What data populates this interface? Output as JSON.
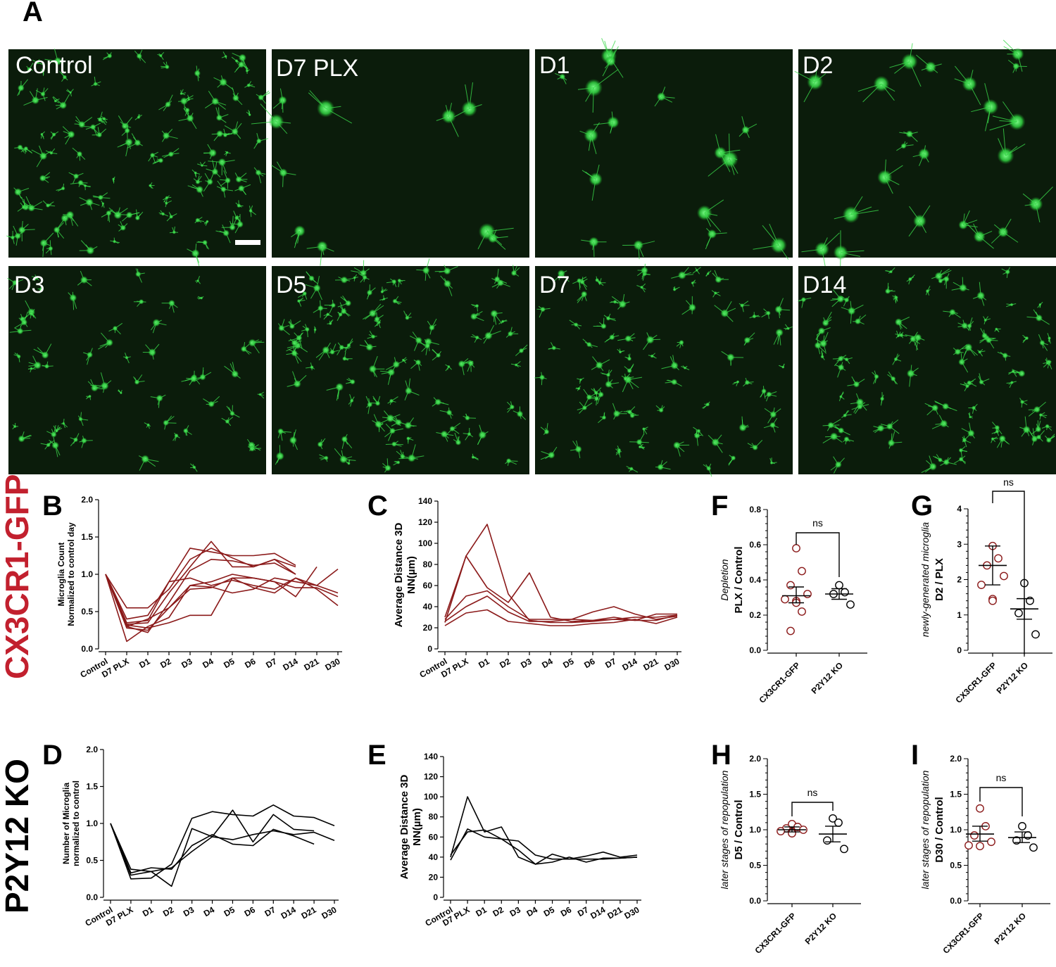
{
  "figure": {
    "panel_letters": [
      "A",
      "B",
      "C",
      "D",
      "E",
      "F",
      "G",
      "H",
      "I"
    ],
    "row_labels": [
      {
        "text": "CX3CR1-GFP",
        "color": "#c2202e"
      },
      {
        "text": "P2Y12 KO",
        "color": "#000000"
      }
    ],
    "image_panels": [
      "Control",
      "D7 PLX",
      "D1",
      "D2",
      "D3",
      "D5",
      "D7",
      "D14"
    ],
    "colors": {
      "cx3cr1": "#8b1a1a",
      "p2y12": "#000000",
      "microglia": "#3ad84a",
      "tissue": "#0b1c0b"
    }
  },
  "chart_data": [
    {
      "id": "B",
      "type": "line",
      "color": "#8b1a1a",
      "categories": [
        "Control",
        "D7 PLX",
        "D1",
        "D2",
        "D3",
        "D4",
        "D5",
        "D6",
        "D7",
        "D14",
        "D21",
        "D30"
      ],
      "ylabel": [
        "Microglia Count",
        "Normalized to control day"
      ],
      "ylim": [
        0,
        2.0
      ],
      "yticks": [
        "0.0",
        "0.5",
        "1.0",
        "1.5",
        "2.0"
      ],
      "series": [
        {
          "values": [
            1.0,
            0.55,
            0.55,
            0.8,
            1.2,
            1.35,
            1.22,
            1.1,
            1.2,
            1.0,
            null,
            null
          ]
        },
        {
          "values": [
            1.0,
            0.4,
            0.45,
            0.9,
            1.35,
            1.3,
            1.25,
            1.25,
            1.28,
            1.12,
            null,
            null
          ]
        },
        {
          "values": [
            1.0,
            0.33,
            0.35,
            0.75,
            1.1,
            1.44,
            1.1,
            1.1,
            1.2,
            1.1,
            null,
            null
          ]
        },
        {
          "values": [
            1.0,
            0.3,
            0.22,
            0.62,
            1.05,
            1.2,
            1.18,
            1.12,
            1.15,
            1.0,
            null,
            null
          ]
        },
        {
          "values": [
            1.0,
            0.35,
            0.38,
            0.9,
            0.95,
            0.85,
            0.92,
            0.85,
            0.8,
            0.95,
            0.8,
            0.58
          ]
        },
        {
          "values": [
            1.0,
            0.1,
            0.3,
            0.42,
            0.85,
            0.9,
            1.0,
            0.95,
            0.9,
            0.82,
            0.82,
            0.7
          ]
        },
        {
          "values": [
            1.0,
            0.28,
            0.25,
            0.55,
            0.8,
            0.82,
            0.95,
            0.82,
            0.75,
            0.95,
            0.85,
            1.07
          ]
        },
        {
          "values": [
            1.0,
            0.32,
            0.28,
            0.35,
            0.45,
            0.45,
            0.95,
            0.95,
            0.9,
            0.7,
            1.1,
            null
          ]
        },
        {
          "values": [
            1.0,
            0.3,
            0.4,
            0.55,
            0.85,
            0.83,
            0.75,
            0.8,
            0.95,
            0.9,
            0.85,
            0.75
          ]
        }
      ]
    },
    {
      "id": "C",
      "type": "line",
      "color": "#8b1a1a",
      "categories": [
        "Control",
        "D7 PLX",
        "D1",
        "D2",
        "D3",
        "D4",
        "D5",
        "D6",
        "D7",
        "D14",
        "D21",
        "D30"
      ],
      "ylabel": [
        "Average Distance 3D",
        "NN(µm)"
      ],
      "ylim": [
        0,
        140
      ],
      "yticks": [
        "0",
        "20",
        "40",
        "60",
        "80",
        "100",
        "120",
        "140"
      ],
      "series": [
        {
          "values": [
            30,
            88,
            118,
            52,
            27,
            25,
            25,
            26,
            28,
            27,
            27,
            32
          ]
        },
        {
          "values": [
            25,
            88,
            58,
            44,
            72,
            30,
            26,
            27,
            28,
            30,
            30,
            32
          ]
        },
        {
          "values": [
            28,
            50,
            55,
            40,
            28,
            28,
            28,
            27,
            30,
            27,
            33,
            33
          ]
        },
        {
          "values": [
            22,
            34,
            37,
            26,
            24,
            22,
            22,
            24,
            25,
            28,
            24,
            30
          ]
        },
        {
          "values": [
            26,
            40,
            50,
            35,
            26,
            26,
            28,
            35,
            40,
            33,
            28,
            31
          ]
        }
      ]
    },
    {
      "id": "D",
      "type": "line",
      "color": "#000000",
      "categories": [
        "Control",
        "D7 PLX",
        "D1",
        "D2",
        "D3",
        "D4",
        "D5",
        "D6",
        "D7",
        "D14",
        "D21",
        "D30"
      ],
      "ylabel": [
        "Number of Microglia",
        "normalized to control"
      ],
      "ylim": [
        0,
        2.0
      ],
      "yticks": [
        "0.0",
        "0.5",
        "1.0",
        "1.5",
        "2.0"
      ],
      "series": [
        {
          "values": [
            1.0,
            0.25,
            0.26,
            0.45,
            1.07,
            1.16,
            1.12,
            1.1,
            1.25,
            1.1,
            1.08,
            0.97
          ]
        },
        {
          "values": [
            1.0,
            0.33,
            0.4,
            0.38,
            0.7,
            0.85,
            0.72,
            0.7,
            0.92,
            0.83,
            0.72,
            null
          ]
        },
        {
          "values": [
            1.0,
            0.38,
            0.35,
            0.15,
            0.93,
            0.82,
            1.18,
            0.75,
            1.12,
            0.92,
            0.9,
            null
          ]
        },
        {
          "values": [
            1.0,
            0.3,
            0.35,
            0.4,
            0.62,
            0.82,
            0.78,
            0.85,
            0.9,
            0.85,
            0.88,
            0.77
          ]
        }
      ]
    },
    {
      "id": "E",
      "type": "line",
      "color": "#000000",
      "categories": [
        "Control",
        "D7 PLX",
        "D1",
        "D2",
        "D3",
        "D4",
        "D5",
        "D6",
        "D7",
        "D14",
        "D21",
        "D30"
      ],
      "ylabel": [
        "Average Distance 3D",
        "NN(µm)"
      ],
      "ylim": [
        0,
        140
      ],
      "yticks": [
        "0",
        "20",
        "40",
        "60",
        "80",
        "100",
        "120",
        "140"
      ],
      "series": [
        {
          "values": [
            40,
            100,
            65,
            70,
            40,
            33,
            43,
            38,
            41,
            45,
            40,
            42
          ]
        },
        {
          "values": [
            37,
            68,
            60,
            58,
            47,
            33,
            35,
            40,
            35,
            39,
            39,
            40
          ]
        },
        {
          "values": [
            42,
            65,
            67,
            58,
            56,
            42,
            38,
            38,
            38,
            38,
            39,
            40
          ]
        }
      ]
    },
    {
      "id": "F",
      "type": "scatter",
      "categories": [
        "CX3CR1-GFP",
        "P2Y12 KO"
      ],
      "ylabel": "PLX / Control",
      "ylabel_context": "Depletion",
      "ylim": [
        0,
        0.8
      ],
      "yticks": [
        "0.0",
        "0.2",
        "0.4",
        "0.6",
        "0.8"
      ],
      "significance": "ns",
      "groups": [
        {
          "values": [
            0.58,
            0.45,
            0.37,
            0.32,
            0.29,
            0.28,
            0.27,
            0.22,
            0.11
          ],
          "mean": 0.31,
          "sem_low": 0.27,
          "sem_high": 0.36,
          "color": "#8b1a1a"
        },
        {
          "values": [
            0.37,
            0.33,
            0.32,
            0.26
          ],
          "mean": 0.32,
          "sem_low": 0.29,
          "sem_high": 0.35,
          "color": "#000000"
        }
      ]
    },
    {
      "id": "G",
      "type": "scatter",
      "categories": [
        "CX3CR1-GFP",
        "P2Y12 KO"
      ],
      "ylabel": "D2 / PLX",
      "ylabel_context": "newly-generated microglia",
      "ylim": [
        0,
        4
      ],
      "yticks": [
        "0",
        "1",
        "2",
        "3",
        "4"
      ],
      "significance": "ns",
      "groups": [
        {
          "values": [
            2.95,
            2.6,
            2.4,
            2.1,
            1.85,
            1.45,
            1.4
          ],
          "mean": 2.4,
          "sem_low": 1.85,
          "sem_high": 2.95,
          "color": "#8b1a1a"
        },
        {
          "values": [
            1.9,
            1.4,
            1.05,
            0.45
          ],
          "mean": 1.17,
          "sem_low": 0.88,
          "sem_high": 1.46,
          "color": "#000000"
        }
      ]
    },
    {
      "id": "H",
      "type": "scatter",
      "categories": [
        "CX3CR1-GFP",
        "P2Y12 KO"
      ],
      "ylabel": "D5 / Control",
      "ylabel_context": "later stages of repopulation",
      "ylim": [
        0,
        2.0
      ],
      "yticks": [
        "0.0",
        "0.5",
        "1.0",
        "1.5",
        "2.0"
      ],
      "significance": "ns",
      "groups": [
        {
          "values": [
            1.08,
            1.04,
            1.02,
            1.0,
            0.98,
            0.97,
            0.95
          ],
          "mean": 1.0,
          "sem_low": 0.97,
          "sem_high": 1.04,
          "color": "#8b1a1a"
        },
        {
          "values": [
            1.16,
            1.1,
            0.85,
            0.73
          ],
          "mean": 0.94,
          "sem_low": 0.83,
          "sem_high": 1.05,
          "color": "#000000"
        }
      ]
    },
    {
      "id": "I",
      "type": "scatter",
      "categories": [
        "CX3CR1-GFP",
        "P2Y12 KO"
      ],
      "ylabel": "D30 / Control",
      "ylabel_context": "later stages of repopulation",
      "ylim": [
        0,
        2.0
      ],
      "yticks": [
        "0.0",
        "0.5",
        "1.0",
        "1.5",
        "2.0"
      ],
      "significance": "ns",
      "groups": [
        {
          "values": [
            1.3,
            1.05,
            0.92,
            0.83,
            0.78,
            0.77
          ],
          "mean": 0.94,
          "sem_low": 0.84,
          "sem_high": 1.05,
          "color": "#8b1a1a"
        },
        {
          "values": [
            1.05,
            0.92,
            0.85,
            0.75
          ],
          "mean": 0.89,
          "sem_low": 0.82,
          "sem_high": 0.97,
          "color": "#000000"
        }
      ]
    }
  ]
}
